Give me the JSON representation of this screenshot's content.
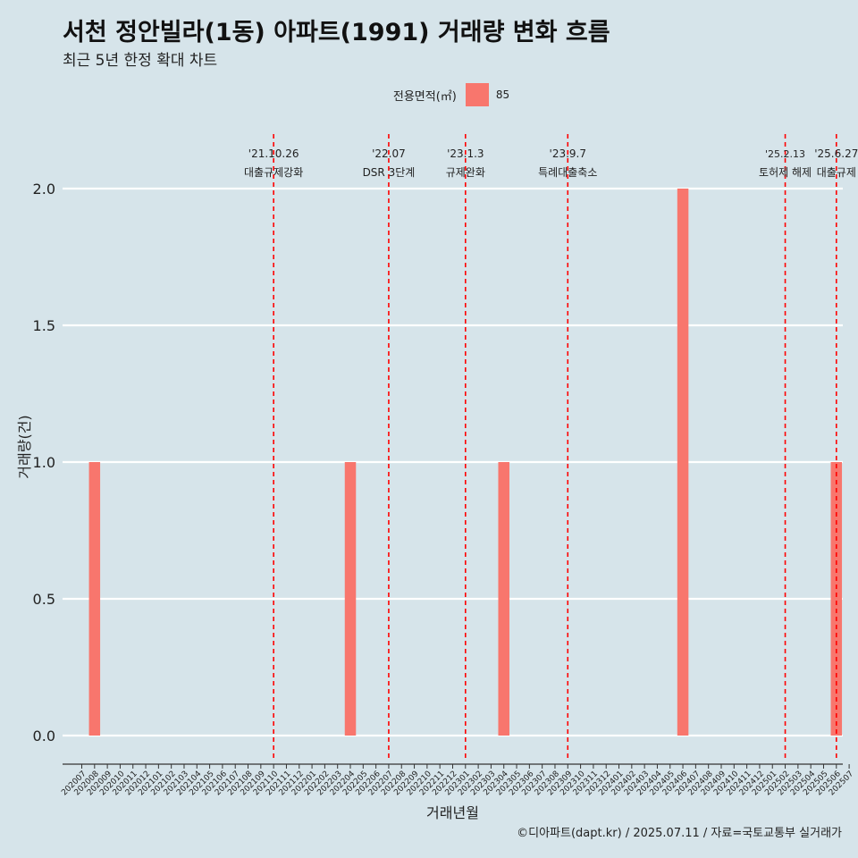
{
  "title": "서천 정안빌라(1동) 아파트(1991) 거래량 변화 흐름",
  "subtitle": "최근 5년 한정 확대 차트",
  "legend": {
    "title": "전용면적(㎡)",
    "label": "85"
  },
  "caption": "©디아파트(dapt.kr) / 2025.07.11 / 자료=국토교통부 실거래가",
  "colors": {
    "bar": "#f8766d",
    "event_line": "#ff0000",
    "grid": "#ffffff",
    "background": "#d6e4ea"
  },
  "chart_data": {
    "type": "bar",
    "xlabel": "거래년월",
    "ylabel": "거래량(건)",
    "ylim": [
      0,
      2
    ],
    "y_ticks": [
      "0.0",
      "0.5",
      "1.0",
      "1.5",
      "2.0"
    ],
    "grid": true,
    "legend_position": "top",
    "categories": [
      "202007",
      "202008",
      "202009",
      "202010",
      "202011",
      "202012",
      "202101",
      "202102",
      "202103",
      "202104",
      "202105",
      "202106",
      "202107",
      "202108",
      "202109",
      "202110",
      "202111",
      "202112",
      "202201",
      "202202",
      "202203",
      "202204",
      "202205",
      "202206",
      "202207",
      "202208",
      "202209",
      "202210",
      "202211",
      "202212",
      "202301",
      "202302",
      "202303",
      "202304",
      "202305",
      "202306",
      "202307",
      "202308",
      "202309",
      "202310",
      "202311",
      "202312",
      "202401",
      "202402",
      "202403",
      "202404",
      "202405",
      "202406",
      "202407",
      "202408",
      "202409",
      "202410",
      "202411",
      "202412",
      "202501",
      "202502",
      "202503",
      "202504",
      "202505",
      "202506",
      "202507"
    ],
    "series": [
      {
        "name": "85",
        "values": {
          "202008": 1,
          "202204": 1,
          "202304": 1,
          "202406": 2,
          "202506": 1
        }
      }
    ],
    "events": [
      {
        "date": "'21.10.26",
        "label": "대출규제강화",
        "month": "202110"
      },
      {
        "date": "'22.07",
        "label": "DSR 3단계",
        "month": "202207"
      },
      {
        "date": "'23.1.3",
        "label": "규제완화",
        "month": "202301"
      },
      {
        "date": "'23.9.7",
        "label": "특례대출축소",
        "month": "202309"
      },
      {
        "date": "'25.2.13",
        "label": "토허제 해제",
        "month": "202502"
      },
      {
        "date": "'25.6.27",
        "label": "대출규제",
        "month": "202506"
      }
    ]
  }
}
